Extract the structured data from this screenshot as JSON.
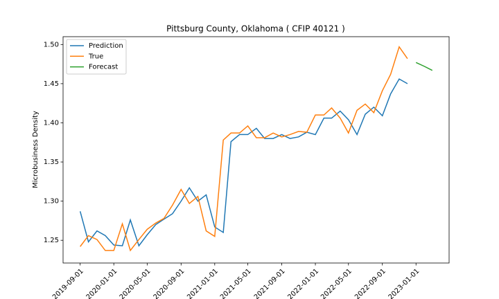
{
  "chart_data": {
    "type": "line",
    "title": "Pittsburg County, Oklahoma ( CFIP 40121 )",
    "y_label": "Microbusiness Density",
    "x": [
      "2019-09-01",
      "2019-10-01",
      "2019-11-01",
      "2019-12-01",
      "2020-01-01",
      "2020-02-01",
      "2020-03-01",
      "2020-04-01",
      "2020-05-01",
      "2020-06-01",
      "2020-07-01",
      "2020-08-01",
      "2020-09-01",
      "2020-10-01",
      "2020-11-01",
      "2020-12-01",
      "2021-01-01",
      "2021-02-01",
      "2021-03-01",
      "2021-04-01",
      "2021-05-01",
      "2021-06-01",
      "2021-07-01",
      "2021-08-01",
      "2021-09-01",
      "2021-10-01",
      "2021-11-01",
      "2021-12-01",
      "2022-01-01",
      "2022-02-01",
      "2022-03-01",
      "2022-04-01",
      "2022-05-01",
      "2022-06-01",
      "2022-07-01",
      "2022-08-01",
      "2022-09-01",
      "2022-10-01",
      "2022-11-01",
      "2022-12-01",
      "2023-01-01",
      "2023-02-01",
      "2023-03-01"
    ],
    "series": [
      {
        "name": "Prediction",
        "color": "#1f77b4",
        "values": [
          1.287,
          1.248,
          1.262,
          1.256,
          1.244,
          1.243,
          1.276,
          1.243,
          1.257,
          1.27,
          1.277,
          1.284,
          1.3,
          1.317,
          1.3,
          1.308,
          1.267,
          1.26,
          1.376,
          1.385,
          1.385,
          1.393,
          1.38,
          1.38,
          1.385,
          1.38,
          1.382,
          1.388,
          1.385,
          1.406,
          1.406,
          1.415,
          1.404,
          1.385,
          1.411,
          1.42,
          1.409,
          1.437,
          1.456,
          1.45,
          null,
          null,
          null
        ]
      },
      {
        "name": "True",
        "color": "#ff7f0e",
        "values": [
          1.242,
          1.256,
          1.251,
          1.237,
          1.237,
          1.271,
          1.237,
          1.251,
          1.264,
          1.272,
          1.278,
          1.295,
          1.315,
          1.297,
          1.306,
          1.262,
          1.255,
          1.378,
          1.387,
          1.387,
          1.396,
          1.381,
          1.381,
          1.387,
          1.382,
          1.385,
          1.389,
          1.388,
          1.41,
          1.41,
          1.419,
          1.406,
          1.387,
          1.416,
          1.424,
          1.413,
          1.441,
          1.462,
          1.497,
          1.482,
          null,
          null,
          null
        ]
      },
      {
        "name": "Forecast",
        "color": "#2ca02c",
        "values": [
          null,
          null,
          null,
          null,
          null,
          null,
          null,
          null,
          null,
          null,
          null,
          null,
          null,
          null,
          null,
          null,
          null,
          null,
          null,
          null,
          null,
          null,
          null,
          null,
          null,
          null,
          null,
          null,
          null,
          null,
          null,
          null,
          null,
          null,
          null,
          null,
          null,
          null,
          null,
          null,
          1.477,
          1.472,
          1.467
        ]
      }
    ],
    "xlim": [
      "2019-07-01",
      "2023-05-01"
    ],
    "xticks": [
      "2019-09-01",
      "2020-01-01",
      "2020-05-01",
      "2020-09-01",
      "2021-01-01",
      "2021-05-01",
      "2021-09-01",
      "2022-01-01",
      "2022-05-01",
      "2022-09-01",
      "2023-01-01"
    ],
    "ylim": [
      1.221,
      1.51
    ],
    "yticks": [
      1.25,
      {
        "value": 1.3,
        "label": "1.30"
      },
      1.35,
      {
        "value": 1.4,
        "label": "1.40"
      },
      1.45,
      {
        "value": 1.5,
        "label": "1.50"
      }
    ],
    "legend": "upper left"
  }
}
